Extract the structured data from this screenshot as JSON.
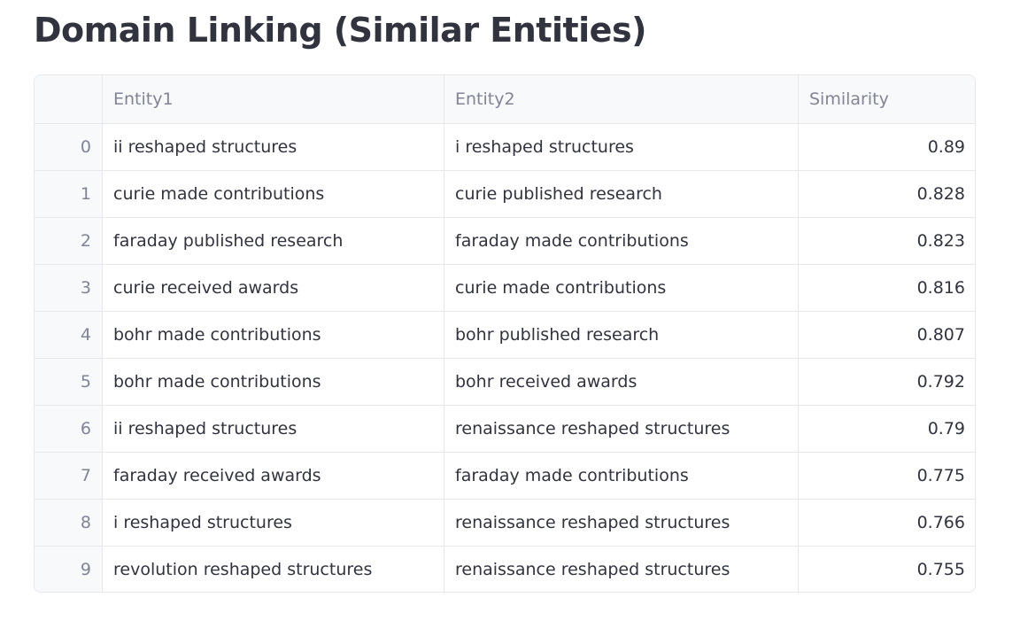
{
  "page": {
    "title": "Domain Linking (Similar Entities)"
  },
  "table": {
    "columns": [
      "",
      "Entity1",
      "Entity2",
      "Similarity"
    ],
    "rows": [
      {
        "index": "0",
        "entity1": "ii reshaped structures",
        "entity2": "i reshaped structures",
        "similarity": "0.89"
      },
      {
        "index": "1",
        "entity1": "curie made contributions",
        "entity2": "curie published research",
        "similarity": "0.828"
      },
      {
        "index": "2",
        "entity1": "faraday published research",
        "entity2": "faraday made contributions",
        "similarity": "0.823"
      },
      {
        "index": "3",
        "entity1": "curie received awards",
        "entity2": "curie made contributions",
        "similarity": "0.816"
      },
      {
        "index": "4",
        "entity1": "bohr made contributions",
        "entity2": "bohr published research",
        "similarity": "0.807"
      },
      {
        "index": "5",
        "entity1": "bohr made contributions",
        "entity2": "bohr received awards",
        "similarity": "0.792"
      },
      {
        "index": "6",
        "entity1": "ii reshaped structures",
        "entity2": "renaissance reshaped structures",
        "similarity": "0.79"
      },
      {
        "index": "7",
        "entity1": "faraday received awards",
        "entity2": "faraday made contributions",
        "similarity": "0.775"
      },
      {
        "index": "8",
        "entity1": "i reshaped structures",
        "entity2": "renaissance reshaped structures",
        "similarity": "0.766"
      },
      {
        "index": "9",
        "entity1": "revolution reshaped structures",
        "entity2": "renaissance reshaped structures",
        "similarity": "0.755"
      }
    ]
  },
  "colors": {
    "text": "#31333f",
    "muted": "#808495",
    "header_bg": "#f8f9fb",
    "border": "#e6e8ec"
  }
}
